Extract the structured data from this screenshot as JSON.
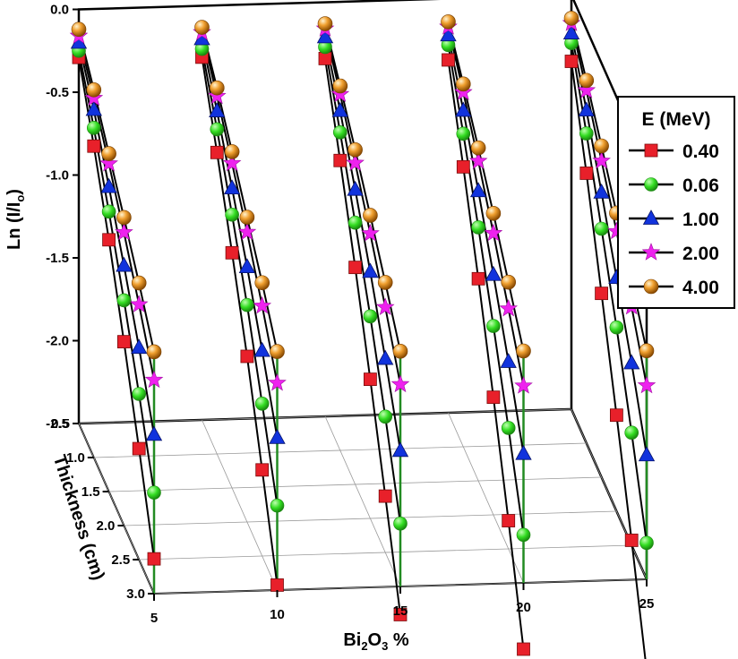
{
  "chart_data": {
    "type": "line",
    "legend_title": "E (MeV)",
    "legend_position": "right",
    "y_axis": {
      "label_main": "Ln (I/I",
      "label_sub": "o",
      "label_end": ")",
      "range": [
        -2.5,
        0.0
      ],
      "ticks": [
        "0.0",
        "-0.5",
        "-1.0",
        "-1.5",
        "-2.0",
        "-2.5"
      ]
    },
    "thickness_axis": {
      "label": "Thickness (cm)",
      "unit": "cm",
      "range": [
        0.5,
        3.0
      ],
      "ticks": [
        "0.5",
        "1.0",
        "1.5",
        "2.0",
        "2.5",
        "3.0"
      ]
    },
    "composition_axis": {
      "label_main": "Bi",
      "label_sub1": "2",
      "label_mid": "O",
      "label_sub2": "3",
      "label_end": " %",
      "categories": [
        5,
        10,
        15,
        20,
        25
      ],
      "ticks": [
        "5",
        "10",
        "15",
        "20",
        "25"
      ]
    },
    "thickness_values": [
      0.5,
      1.0,
      1.5,
      2.0,
      2.5,
      3.0
    ],
    "series": [
      {
        "name": "0.40",
        "color": "#e8202a",
        "marker": "square",
        "values": {
          "5": [
            -0.29,
            -0.62,
            -0.98,
            -1.39,
            -1.83,
            -2.29
          ],
          "10": [
            -0.31,
            -0.68,
            -1.08,
            -1.5,
            -1.98,
            -2.47
          ],
          "15": [
            -0.34,
            -0.75,
            -1.19,
            -1.66,
            -2.16,
            -2.67
          ],
          "20": [
            -0.37,
            -0.81,
            -1.28,
            -1.79,
            -2.33,
            -2.9
          ],
          "25": [
            -0.4,
            -0.87,
            -1.39,
            -1.92,
            -2.47,
            -3.05
          ]
        }
      },
      {
        "name": "0.06",
        "color": "#33dd22",
        "marker": "circle",
        "values": {
          "5": [
            -0.25,
            -0.51,
            -0.81,
            -1.14,
            -1.5,
            -1.89
          ],
          "10": [
            -0.26,
            -0.54,
            -0.85,
            -1.19,
            -1.58,
            -1.99
          ],
          "15": [
            -0.27,
            -0.58,
            -0.92,
            -1.28,
            -1.68,
            -2.12
          ],
          "20": [
            -0.28,
            -0.61,
            -0.97,
            -1.36,
            -1.77,
            -2.21
          ],
          "25": [
            -0.29,
            -0.63,
            -1.0,
            -1.39,
            -1.82,
            -2.28
          ]
        }
      },
      {
        "name": "1.00",
        "color": "#1133dd",
        "marker": "triangle",
        "values": {
          "5": [
            -0.2,
            -0.4,
            -0.66,
            -0.93,
            -1.22,
            -1.54
          ],
          "10": [
            -0.2,
            -0.43,
            -0.69,
            -0.96,
            -1.26,
            -1.58
          ],
          "15": [
            -0.21,
            -0.45,
            -0.72,
            -1.01,
            -1.33,
            -1.68
          ],
          "20": [
            -0.22,
            -0.47,
            -0.75,
            -1.05,
            -1.37,
            -1.72
          ],
          "25": [
            -0.23,
            -0.49,
            -0.78,
            -1.09,
            -1.4,
            -1.75
          ]
        }
      },
      {
        "name": "2.00",
        "color": "#ee22ee",
        "marker": "star",
        "values": {
          "5": [
            -0.16,
            -0.33,
            -0.52,
            -0.73,
            -0.96,
            -1.21
          ],
          "10": [
            -0.16,
            -0.34,
            -0.54,
            -0.75,
            -0.99,
            -1.25
          ],
          "15": [
            -0.16,
            -0.35,
            -0.56,
            -0.78,
            -1.02,
            -1.28
          ],
          "20": [
            -0.17,
            -0.36,
            -0.57,
            -0.8,
            -1.05,
            -1.31
          ],
          "25": [
            -0.17,
            -0.37,
            -0.59,
            -0.81,
            -1.06,
            -1.33
          ]
        }
      },
      {
        "name": "4.00",
        "color": "#f0a030",
        "marker": "sphere",
        "values": {
          "5": [
            -0.12,
            -0.28,
            -0.46,
            -0.64,
            -0.83,
            -1.04
          ],
          "10": [
            -0.13,
            -0.29,
            -0.47,
            -0.66,
            -0.85,
            -1.06
          ],
          "15": [
            -0.13,
            -0.3,
            -0.48,
            -0.67,
            -0.87,
            -1.08
          ],
          "20": [
            -0.14,
            -0.31,
            -0.49,
            -0.68,
            -0.89,
            -1.1
          ],
          "25": [
            -0.14,
            -0.31,
            -0.5,
            -0.7,
            -0.91,
            -1.12
          ]
        }
      }
    ]
  }
}
